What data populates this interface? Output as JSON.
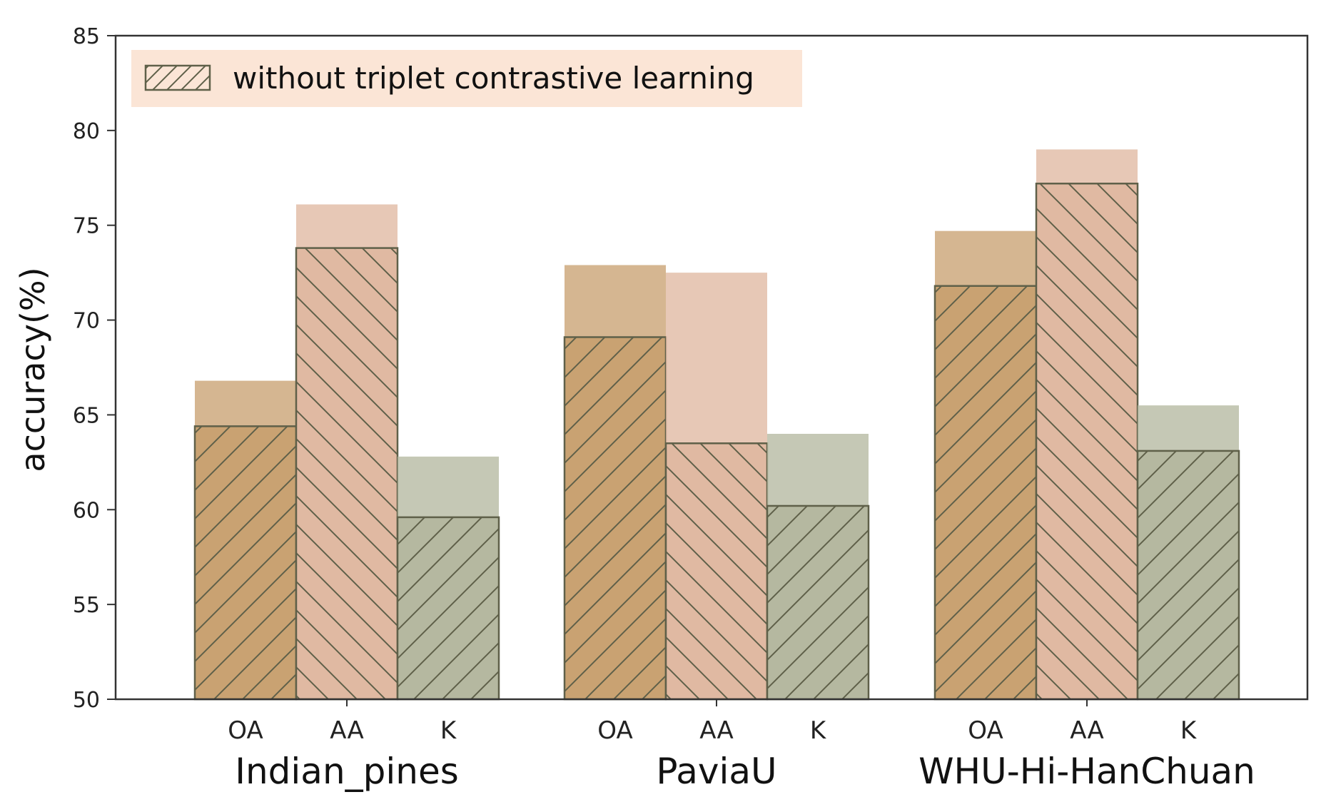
{
  "chart_data": {
    "type": "bar",
    "title": "",
    "ylabel": "accuracy(%)",
    "xlabel": "",
    "ylim": [
      50,
      85
    ],
    "yticks": [
      50,
      55,
      60,
      65,
      70,
      75,
      80,
      85
    ],
    "grid": false,
    "legend": {
      "position": "top-left",
      "entries": [
        "without triplet contrastive learning"
      ]
    },
    "groups": [
      "Indian_pines",
      "PaviaU",
      "WHU-Hi-HanChuan"
    ],
    "categories": [
      "OA",
      "AA",
      "K"
    ],
    "series": [
      {
        "values": [
          [
            66.8,
            76.1,
            62.8
          ],
          [
            72.9,
            72.5,
            64.0
          ],
          [
            74.7,
            79.0,
            65.5
          ]
        ]
      },
      {
        "name": "without triplet contrastive learning",
        "values": [
          [
            64.4,
            73.8,
            59.6
          ],
          [
            69.1,
            63.5,
            60.2
          ],
          [
            71.8,
            77.2,
            63.1
          ]
        ]
      }
    ],
    "colors": {
      "OA": "#c9a272",
      "AA": "#e0b9a2",
      "K": "#b5b8a0",
      "edge": "#5f6049",
      "legend_bg": "#fbe5d6"
    }
  }
}
